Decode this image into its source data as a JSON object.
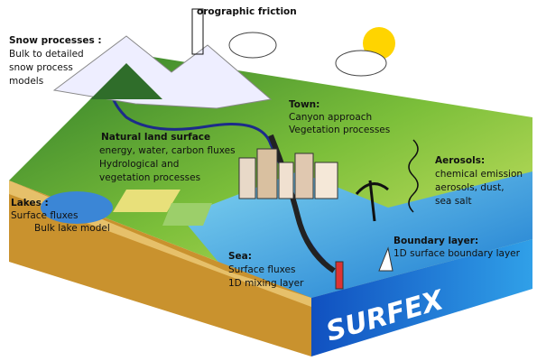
{
  "title": "orographic friction",
  "labels": [
    {
      "title": "Snow processes :",
      "lines": [
        "Bulk to detailed",
        "snow process",
        "models"
      ]
    },
    {
      "title": "Natural land surface",
      "lines": [
        "energy, water, carbon fluxes",
        "Hydrological and",
        "vegetation processes"
      ]
    },
    {
      "title": "Town:",
      "lines": [
        "Canyon approach",
        "Vegetation processes"
      ]
    },
    {
      "title": "Aerosols:",
      "lines": [
        "chemical emission",
        "aerosols, dust,",
        "sea salt"
      ]
    },
    {
      "title": "Lakes :",
      "lines": [
        "Surface fluxes",
        "Bulk lake model"
      ]
    },
    {
      "title": "Sea:",
      "lines": [
        "Surface fluxes",
        "1D mixing layer"
      ]
    },
    {
      "title": "Boundary layer:",
      "lines": [
        "1D surface boundary layer"
      ]
    }
  ],
  "brand": "SURFEX"
}
